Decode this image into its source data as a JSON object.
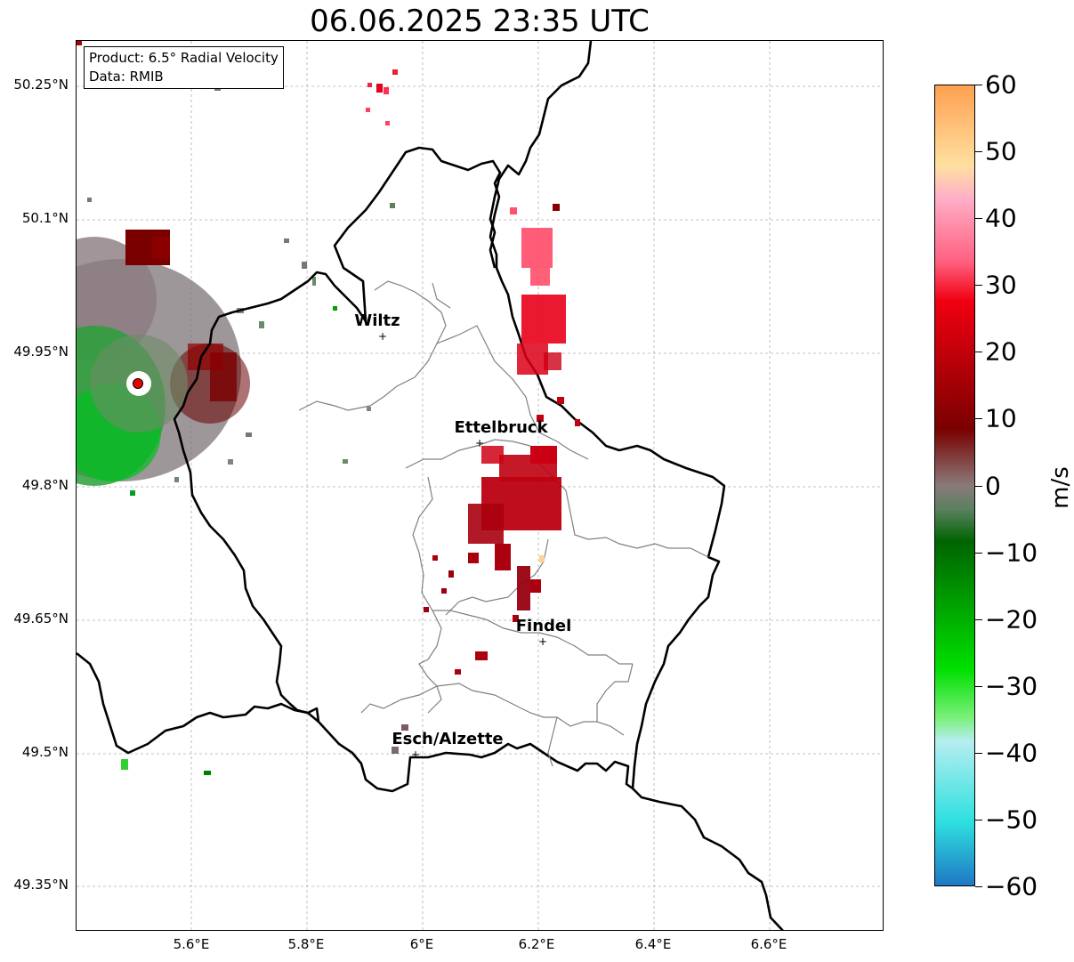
{
  "title": "06.06.2025 23:35 UTC",
  "info": {
    "product": "Product: 6.5° Radial Velocity",
    "source": "Data: RMIB"
  },
  "lat_ticks": [
    "50.25°N",
    "50.1°N",
    "49.95°N",
    "49.8°N",
    "49.65°N",
    "49.5°N",
    "49.35°N"
  ],
  "lon_ticks": [
    "5.6°E",
    "5.8°E",
    "6°E",
    "6.2°E",
    "6.4°E",
    "6.6°E"
  ],
  "cities": [
    {
      "name": "Wiltz",
      "marker": "+"
    },
    {
      "name": "Ettelbruck",
      "marker": "+"
    },
    {
      "name": "Findel",
      "marker": "+"
    },
    {
      "name": "Esch/Alzette",
      "marker": "+"
    }
  ],
  "colorbar": {
    "unit": "m/s",
    "labels": [
      "60",
      "50",
      "40",
      "30",
      "20",
      "10",
      "0",
      "−10",
      "−20",
      "−30",
      "−40",
      "−50",
      "−60"
    ],
    "colors": {
      "approach_strong": "#1f78c4",
      "cyan": "#2ee0e0",
      "light_cyan": "#b6eef0",
      "light_green": "#7af07a",
      "bright_green": "#00e000",
      "dark_green": "#006400",
      "gray_green": "#5a8060",
      "neutral": "#8a7a7a",
      "maroon": "#7a0000",
      "red": "#f00010",
      "pink": "#ff6080",
      "light_pink": "#ffb0c8",
      "peach": "#ffe0a0",
      "orange": "#ffa050"
    }
  },
  "map_colors": {
    "country_border": "#000000",
    "canton_border": "#808080",
    "grid": "#b0b0b0",
    "radar_site": "#ee0000"
  }
}
